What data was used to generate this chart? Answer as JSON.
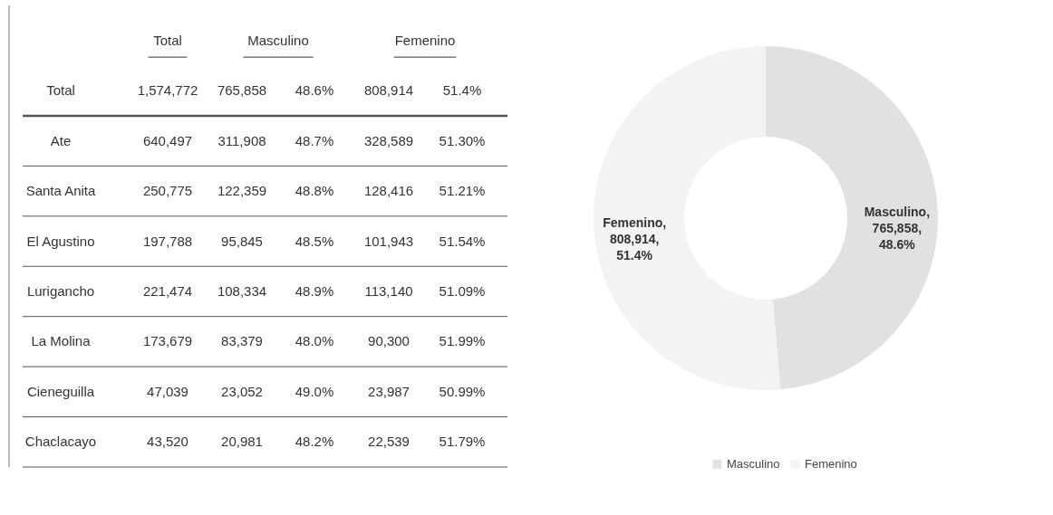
{
  "chart_data": [
    {
      "type": "other",
      "annotations": [
        "Total",
        "Masculino",
        "Femenino",
        "Total",
        "1,574,772",
        "765,858",
        "48.6%",
        "808,914",
        "51.4%",
        "Ate",
        "640,497",
        "311,908",
        "48.7%",
        "328,589",
        "51.30%",
        "Santa Anita",
        "250,775",
        "122,359",
        "48.8%",
        "128,416",
        "51.21%",
        "El Agustino",
        "197,788",
        "95,845",
        "48.5%",
        "101,943",
        "51.54%",
        "Lurigancho",
        "221,474",
        "108,334",
        "48.9%",
        "113,140",
        "51.09%",
        "La Molina",
        "173,679",
        "83,379",
        "48.0%",
        "90,300",
        "51.99%",
        "Cieneguilla",
        "47,039",
        "23,052",
        "49.0%",
        "23,987",
        "50.99%",
        "Chaclacayo",
        "43,520",
        "20,981",
        "48.2%",
        "22,539",
        "51.79%"
      ]
    },
    {
      "type": "donut",
      "categories": [
        "Masculino",
        "Femenino"
      ],
      "values": [
        765858,
        808914
      ],
      "colors": [
        "#e1e1e1",
        "#f3f3f3"
      ],
      "value_labels": [
        "Masculino,\n765,858,\n48.6%",
        "Femenino,\n808,914,\n51.4%"
      ],
      "legend": "bottom"
    }
  ]
}
